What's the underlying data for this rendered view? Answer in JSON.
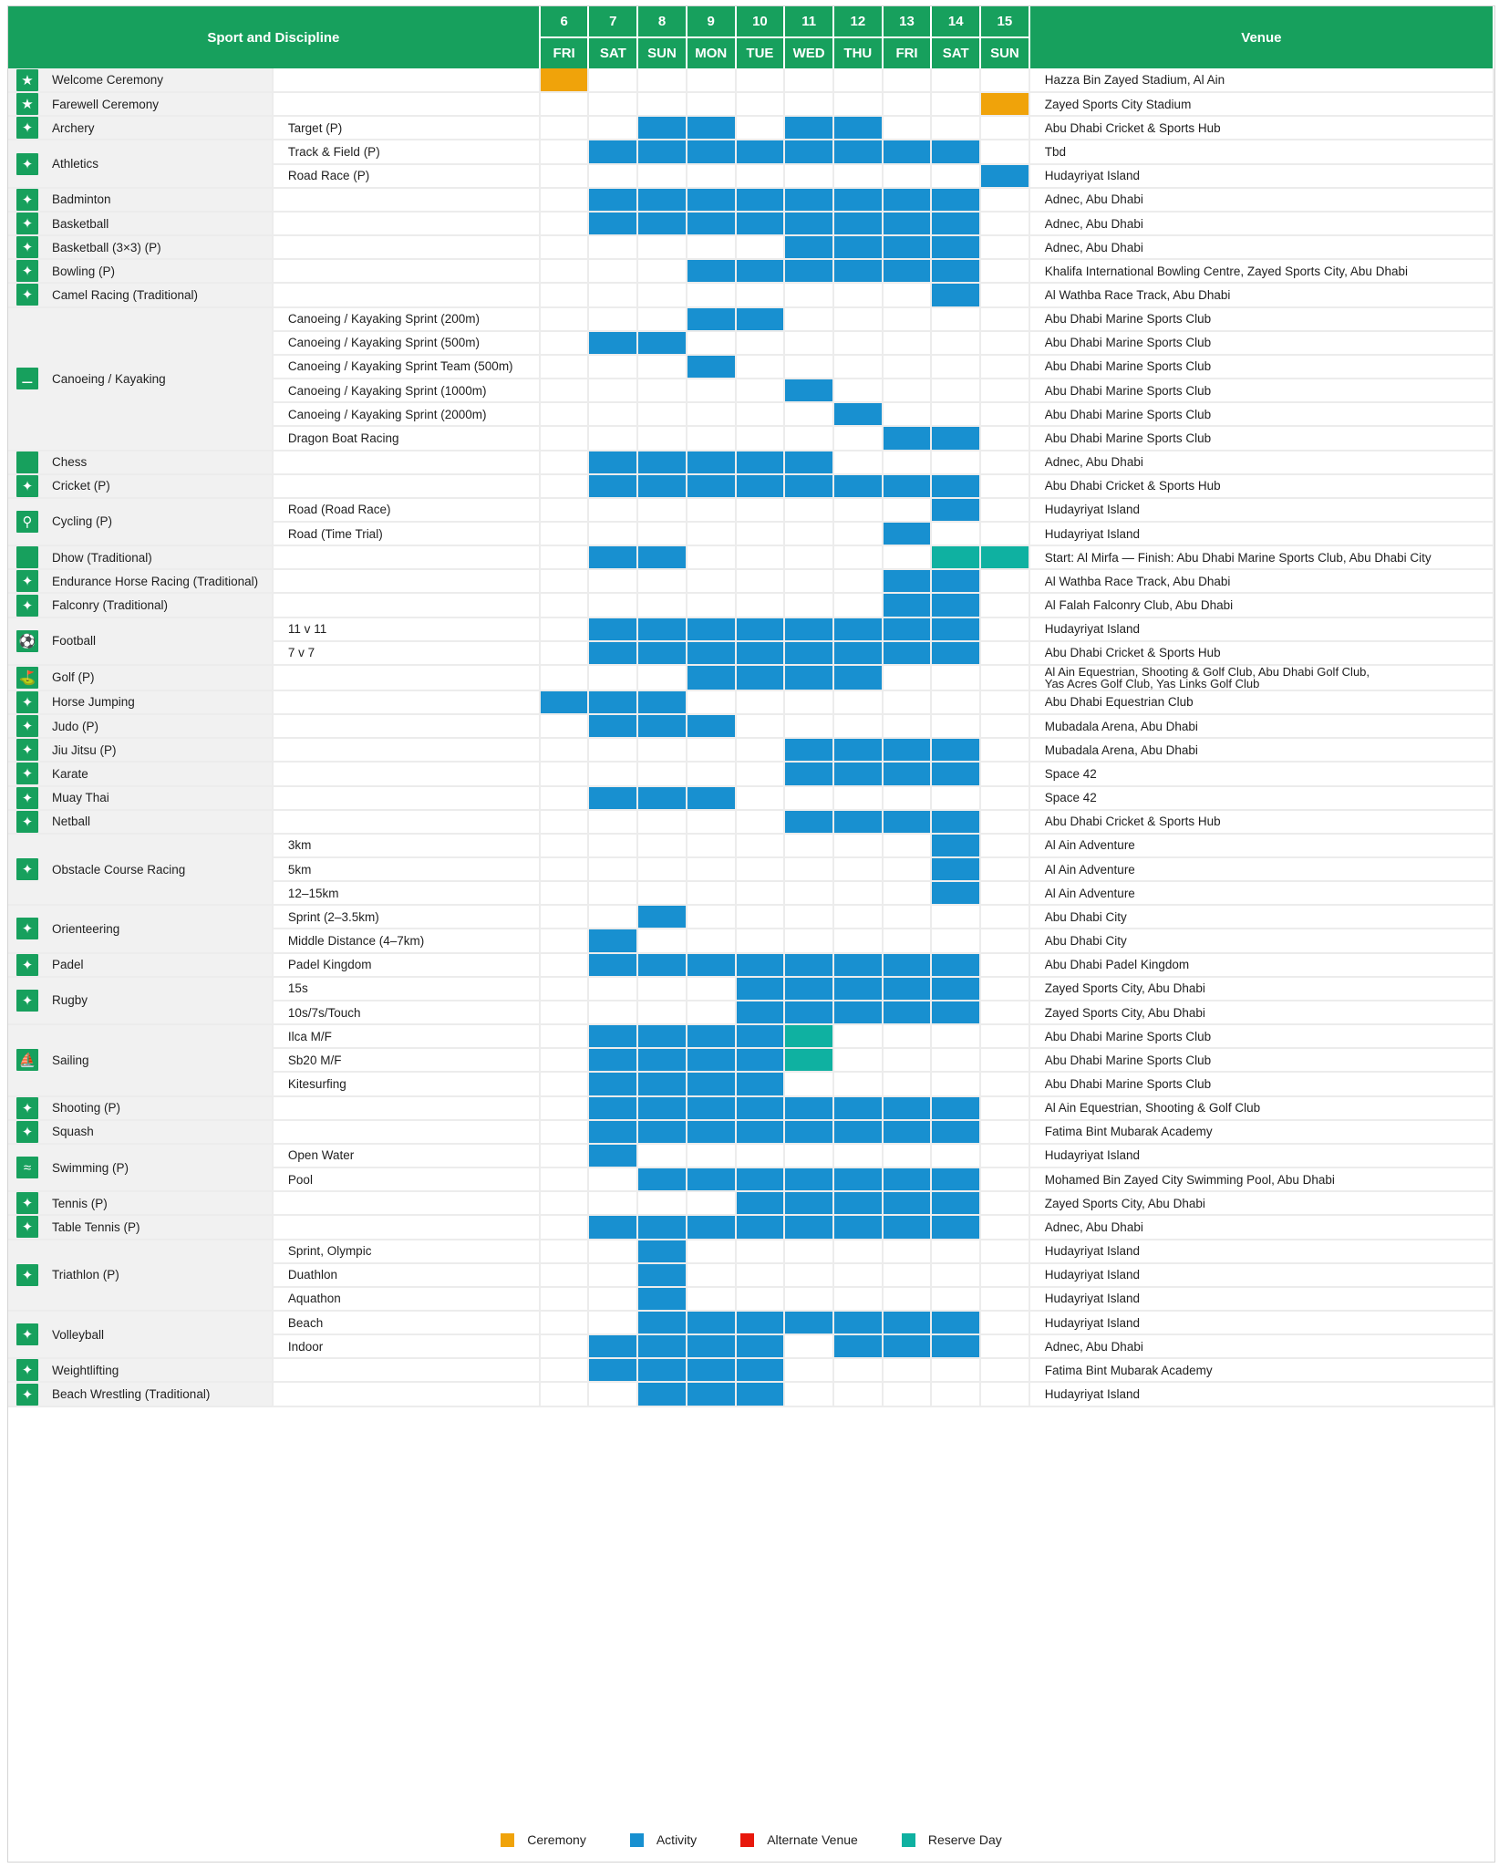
{
  "header": {
    "sport_and_discipline": "Sport and Discipline",
    "venue": "Venue",
    "days": [
      {
        "num": "6",
        "dow": "FRI"
      },
      {
        "num": "7",
        "dow": "SAT"
      },
      {
        "num": "8",
        "dow": "SUN"
      },
      {
        "num": "9",
        "dow": "MON"
      },
      {
        "num": "10",
        "dow": "TUE"
      },
      {
        "num": "11",
        "dow": "WED"
      },
      {
        "num": "12",
        "dow": "THU"
      },
      {
        "num": "13",
        "dow": "FRI"
      },
      {
        "num": "14",
        "dow": "SAT"
      },
      {
        "num": "15",
        "dow": "SUN"
      }
    ]
  },
  "status_codes": {
    "C": "Ceremony",
    "A": "Activity",
    "V": "Alternate Venue",
    "R": "Reserve Day"
  },
  "colors": {
    "header": "#17a05d",
    "ceremony": "#f0a30a",
    "activity": "#1890d0",
    "alternate_venue": "#e8180c",
    "reserve_day": "#0fb1a1",
    "sport_cell_bg": "#f1f1f1"
  },
  "legend": [
    {
      "key": "ceremony",
      "label": "Ceremony",
      "color": "#f0a30a"
    },
    {
      "key": "activity",
      "label": "Activity",
      "color": "#1890d0"
    },
    {
      "key": "alternate-venue",
      "label": "Alternate Venue",
      "color": "#e8180c"
    },
    {
      "key": "reserve-day",
      "label": "Reserve Day",
      "color": "#0fb1a1"
    }
  ],
  "sports": [
    {
      "name": "Welcome Ceremony",
      "icon": "star-icon",
      "rows": [
        {
          "discipline": "",
          "days": "C.........",
          "venue": "Hazza Bin Zayed Stadium, Al Ain"
        }
      ]
    },
    {
      "name": "Farewell Ceremony",
      "icon": "star-icon",
      "rows": [
        {
          "discipline": "",
          "days": ".........C",
          "venue": "Zayed Sports City Stadium"
        }
      ]
    },
    {
      "name": "Archery",
      "icon": "archery-icon",
      "rows": [
        {
          "discipline": "Target (P)",
          "days": "..AA.AA...",
          "venue": "Abu Dhabi Cricket & Sports Hub"
        }
      ]
    },
    {
      "name": "Athletics",
      "icon": "athletics-icon",
      "rows": [
        {
          "discipline": "Track & Field (P)",
          "days": ".AAAAAAAA.",
          "venue": "Tbd"
        },
        {
          "discipline": "Road Race (P)",
          "days": ".........A",
          "venue": "Hudayriyat Island"
        }
      ]
    },
    {
      "name": "Badminton",
      "icon": "badminton-icon",
      "rows": [
        {
          "discipline": "",
          "days": ".AAAAAAAA.",
          "venue": "Adnec, Abu Dhabi"
        }
      ]
    },
    {
      "name": "Basketball",
      "icon": "basketball-icon",
      "rows": [
        {
          "discipline": "",
          "days": ".AAAAAAAA.",
          "venue": "Adnec, Abu Dhabi"
        }
      ]
    },
    {
      "name": "Basketball (3×3) (P)",
      "icon": "basketball-3x3-icon",
      "rows": [
        {
          "discipline": "",
          "days": ".....AAAA.",
          "venue": "Adnec, Abu Dhabi"
        }
      ]
    },
    {
      "name": "Bowling (P)",
      "icon": "bowling-icon",
      "rows": [
        {
          "discipline": "",
          "days": "...AAAAAA.",
          "venue": "Khalifa International Bowling Centre, Zayed Sports City, Abu Dhabi"
        }
      ]
    },
    {
      "name": "Camel Racing (Traditional)",
      "icon": "camel-racing-icon",
      "rows": [
        {
          "discipline": "",
          "days": "........A.",
          "venue": "Al Wathba Race Track, Abu Dhabi"
        }
      ]
    },
    {
      "name": "Canoeing / Kayaking",
      "icon": "canoe-icon",
      "rows": [
        {
          "discipline": "Canoeing / Kayaking Sprint (200m)",
          "days": "...AA.....",
          "venue": "Abu Dhabi Marine Sports Club"
        },
        {
          "discipline": "Canoeing / Kayaking Sprint  (500m)",
          "days": ".AA.......",
          "venue": "Abu Dhabi Marine Sports Club"
        },
        {
          "discipline": "Canoeing / Kayaking Sprint Team (500m)",
          "days": "...A......",
          "venue": "Abu Dhabi Marine Sports Club"
        },
        {
          "discipline": "Canoeing / Kayaking  Sprint (1000m)",
          "days": ".....A....",
          "venue": "Abu Dhabi Marine Sports Club"
        },
        {
          "discipline": "Canoeing / Kayaking  Sprint (2000m)",
          "days": "......A...",
          "venue": "Abu Dhabi Marine Sports Club"
        },
        {
          "discipline": "Dragon Boat Racing",
          "days": ".......AA.",
          "venue": "Abu Dhabi Marine Sports Club"
        }
      ]
    },
    {
      "name": "Chess",
      "icon": "chess-icon",
      "rows": [
        {
          "discipline": "",
          "days": ".AAAAA....",
          "venue": "Adnec, Abu Dhabi"
        }
      ]
    },
    {
      "name": "Cricket (P)",
      "icon": "cricket-icon",
      "rows": [
        {
          "discipline": "",
          "days": ".AAAAAAAA.",
          "venue": "Abu Dhabi Cricket & Sports Hub"
        }
      ]
    },
    {
      "name": "Cycling (P)",
      "icon": "cycling-icon",
      "rows": [
        {
          "discipline": "Road (Road Race)",
          "days": "........A.",
          "venue": "Hudayriyat Island"
        },
        {
          "discipline": "Road (Time Trial)",
          "days": ".......A..",
          "venue": "Hudayriyat Island"
        }
      ]
    },
    {
      "name": "Dhow (Traditional)",
      "icon": "dhow-icon",
      "rows": [
        {
          "discipline": "",
          "days": ".AA.....RR",
          "venue": "Start: Al Mirfa — Finish: Abu Dhabi Marine Sports Club, Abu Dhabi City"
        }
      ]
    },
    {
      "name": "Endurance Horse Racing (Traditional)",
      "icon": "horse-racing-icon",
      "rows": [
        {
          "discipline": "",
          "days": ".......AA.",
          "venue": "Al Wathba Race Track, Abu Dhabi"
        }
      ]
    },
    {
      "name": "Falconry (Traditional)",
      "icon": "falconry-icon",
      "rows": [
        {
          "discipline": "",
          "days": ".......AA.",
          "venue": "Al Falah Falconry Club, Abu Dhabi"
        }
      ]
    },
    {
      "name": "Football",
      "icon": "football-icon",
      "rows": [
        {
          "discipline": "11 v 11",
          "days": ".AAAAAAAA.",
          "venue": "Hudayriyat Island"
        },
        {
          "discipline": "7 v 7",
          "days": ".AAAAAAAA.",
          "venue": "Abu Dhabi Cricket & Sports Hub"
        }
      ]
    },
    {
      "name": "Golf (P)",
      "icon": "golf-icon",
      "rows": [
        {
          "discipline": "",
          "days": "...AAAA...",
          "venue": "Al Ain Equestrian, Shooting & Golf Club, Abu Dhabi Golf Club,",
          "venue2": "Yas Acres Golf Club, Yas Links Golf Club"
        }
      ]
    },
    {
      "name": "Horse Jumping",
      "icon": "horse-jumping-icon",
      "rows": [
        {
          "discipline": "",
          "days": "AAA.......",
          "venue": "Abu Dhabi Equestrian Club"
        }
      ]
    },
    {
      "name": "Judo (P)",
      "icon": "judo-icon",
      "rows": [
        {
          "discipline": "",
          "days": ".AAA......",
          "venue": "Mubadala Arena, Abu Dhabi"
        }
      ]
    },
    {
      "name": "Jiu Jitsu (P)",
      "icon": "jiu-jitsu-icon",
      "rows": [
        {
          "discipline": "",
          "days": ".....AAAA.",
          "venue": "Mubadala Arena, Abu Dhabi"
        }
      ]
    },
    {
      "name": "Karate",
      "icon": "karate-icon",
      "rows": [
        {
          "discipline": "",
          "days": ".....AAAA.",
          "venue": "Space 42"
        }
      ]
    },
    {
      "name": "Muay Thai",
      "icon": "muay-thai-icon",
      "rows": [
        {
          "discipline": "",
          "days": ".AAA......",
          "venue": "Space 42"
        }
      ]
    },
    {
      "name": "Netball",
      "icon": "netball-icon",
      "rows": [
        {
          "discipline": "",
          "days": ".....AAAA.",
          "venue": "Abu Dhabi Cricket & Sports Hub"
        }
      ]
    },
    {
      "name": "Obstacle Course Racing",
      "icon": "obstacle-course-icon",
      "rows": [
        {
          "discipline": "3km",
          "days": "........A.",
          "venue": "Al Ain Adventure"
        },
        {
          "discipline": "5km",
          "days": "........A.",
          "venue": "Al Ain Adventure"
        },
        {
          "discipline": "12–15km",
          "days": "........A.",
          "venue": "Al Ain Adventure"
        }
      ]
    },
    {
      "name": "Orienteering",
      "icon": "orienteering-icon",
      "rows": [
        {
          "discipline": "Sprint (2–3.5km)",
          "days": "..A.......",
          "venue": "Abu Dhabi City"
        },
        {
          "discipline": "Middle Distance  (4–7km)",
          "days": ".A........",
          "venue": "Abu Dhabi City"
        }
      ]
    },
    {
      "name": "Padel",
      "icon": "padel-icon",
      "rows": [
        {
          "discipline": "Padel Kingdom",
          "days": ".AAAAAAAA.",
          "venue": "Abu Dhabi Padel Kingdom"
        }
      ]
    },
    {
      "name": "Rugby",
      "icon": "rugby-icon",
      "rows": [
        {
          "discipline": "15s",
          "days": "....AAAAA.",
          "venue": "Zayed Sports City, Abu Dhabi"
        },
        {
          "discipline": "10s/7s/Touch",
          "days": "....AAAAA.",
          "venue": "Zayed Sports City, Abu Dhabi"
        }
      ]
    },
    {
      "name": "Sailing",
      "icon": "sailing-icon",
      "rows": [
        {
          "discipline": "Ilca M/F",
          "days": ".AAAAR....",
          "venue": "Abu Dhabi Marine Sports Club"
        },
        {
          "discipline": "Sb20 M/F",
          "days": ".AAAAR....",
          "venue": "Abu Dhabi Marine Sports Club"
        },
        {
          "discipline": "Kitesurfing",
          "days": ".AAAA.....",
          "venue": "Abu Dhabi Marine Sports Club"
        }
      ]
    },
    {
      "name": "Shooting (P)",
      "icon": "shooting-icon",
      "rows": [
        {
          "discipline": "",
          "days": ".AAAAAAAA.",
          "venue": "Al Ain Equestrian, Shooting & Golf Club"
        }
      ]
    },
    {
      "name": "Squash",
      "icon": "squash-icon",
      "rows": [
        {
          "discipline": "",
          "days": ".AAAAAAAA.",
          "venue": "Fatima Bint Mubarak Academy"
        }
      ]
    },
    {
      "name": "Swimming  (P)",
      "icon": "swimming-icon",
      "rows": [
        {
          "discipline": "Open Water",
          "days": ".A........",
          "venue": "Hudayriyat Island"
        },
        {
          "discipline": "Pool",
          "days": "..AAAAAAA.",
          "venue": "Mohamed Bin Zayed City Swimming Pool, Abu Dhabi"
        }
      ]
    },
    {
      "name": "Tennis (P)",
      "icon": "tennis-icon",
      "rows": [
        {
          "discipline": "",
          "days": "....AAAAA.",
          "venue": "Zayed Sports City, Abu Dhabi"
        }
      ]
    },
    {
      "name": "Table Tennis (P)",
      "icon": "table-tennis-icon",
      "rows": [
        {
          "discipline": "",
          "days": ".AAAAAAAA.",
          "venue": "Adnec, Abu Dhabi"
        }
      ]
    },
    {
      "name": "Triathlon (P)",
      "icon": "triathlon-icon",
      "rows": [
        {
          "discipline": "Sprint, Olympic",
          "days": "..A.......",
          "venue": "Hudayriyat Island"
        },
        {
          "discipline": "Duathlon",
          "days": "..A.......",
          "venue": "Hudayriyat Island"
        },
        {
          "discipline": "Aquathon",
          "days": "..A.......",
          "venue": "Hudayriyat Island"
        }
      ]
    },
    {
      "name": "Volleyball",
      "icon": "volleyball-icon",
      "rows": [
        {
          "discipline": "Beach",
          "days": "..AAAAAAA.",
          "venue": "Hudayriyat Island"
        },
        {
          "discipline": "Indoor",
          "days": ".AAAA.AAA.",
          "venue": "Adnec, Abu Dhabi"
        }
      ]
    },
    {
      "name": "Weightlifting",
      "icon": "weightlifting-icon",
      "rows": [
        {
          "discipline": "",
          "days": ".AAAA.....",
          "venue": "Fatima Bint Mubarak Academy"
        }
      ]
    },
    {
      "name": "Beach Wrestling (Traditional)",
      "icon": "wrestling-icon",
      "rows": [
        {
          "discipline": "",
          "days": "..AAA.....",
          "venue": "Hudayriyat Island"
        }
      ]
    }
  ]
}
